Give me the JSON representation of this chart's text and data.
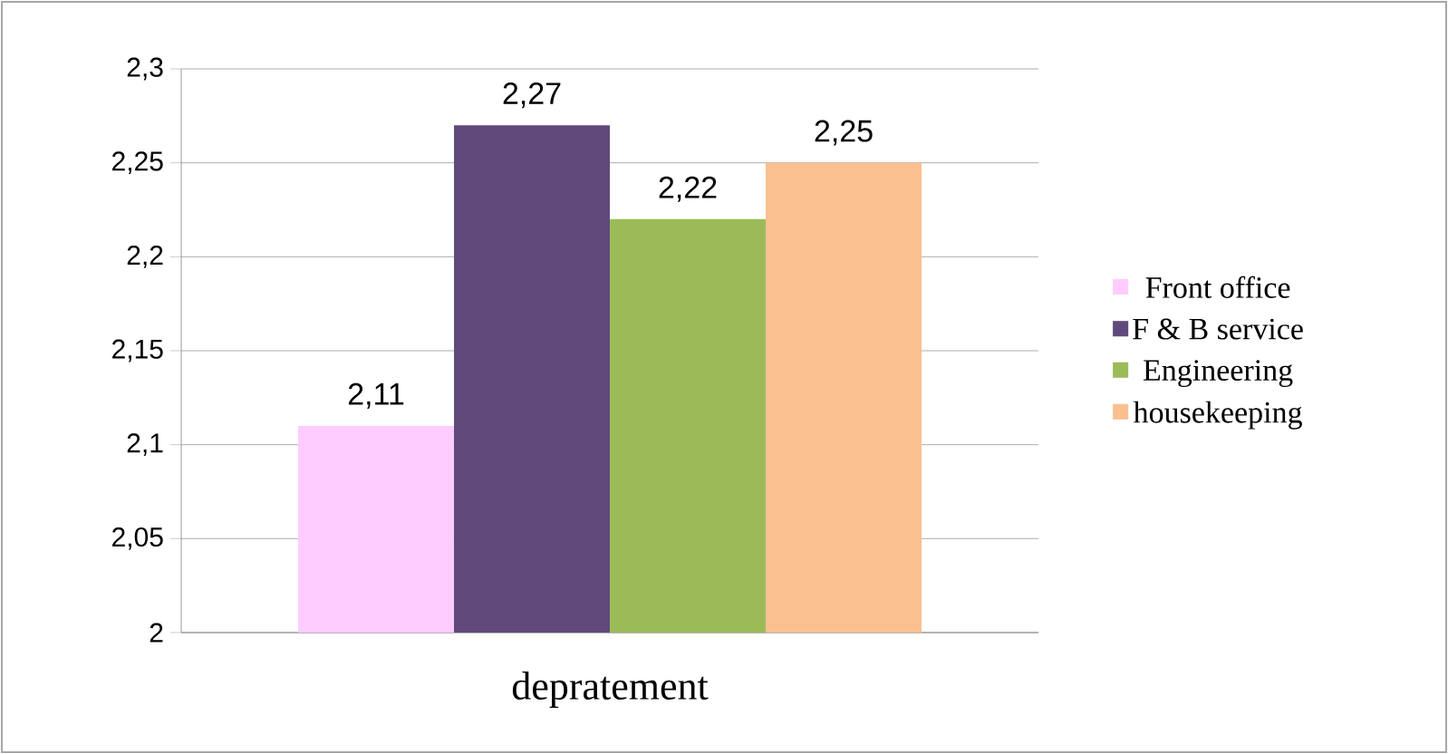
{
  "chart_data": {
    "type": "bar",
    "categories": [
      "depratement"
    ],
    "series": [
      {
        "name": "Front office",
        "color": "#ffccff",
        "values": [
          2.11
        ],
        "value_labels": [
          "2,11"
        ]
      },
      {
        "name": "F & B service",
        "color": "#604a7b",
        "values": [
          2.27
        ],
        "value_labels": [
          "2,27"
        ]
      },
      {
        "name": "Engineering",
        "color": "#9bbb59",
        "values": [
          2.22
        ],
        "value_labels": [
          "2,22"
        ]
      },
      {
        "name": "housekeeping",
        "color": "#fac090",
        "values": [
          2.25
        ],
        "value_labels": [
          "2,25"
        ]
      }
    ],
    "ylim": [
      2,
      2.3
    ],
    "yticks": [
      2,
      {
        "value": 2.05,
        "label": "2,05"
      },
      {
        "value": 2.1,
        "label": "2,1"
      },
      {
        "value": 2.15,
        "label": "2,15"
      },
      {
        "value": 2.2,
        "label": "2,2"
      },
      {
        "value": 2.25,
        "label": "2,25"
      },
      {
        "value": 2.3,
        "label": "2,3"
      }
    ],
    "grid": "y",
    "legend": "right"
  }
}
